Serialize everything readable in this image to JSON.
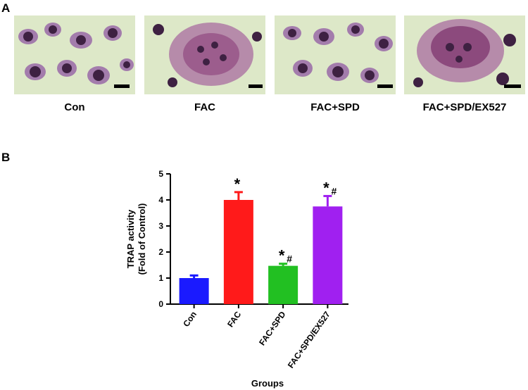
{
  "panel_a": {
    "label": "A",
    "images": [
      {
        "caption": "Con",
        "cells": "many-small"
      },
      {
        "caption": "FAC",
        "cells": "large-multinuclear"
      },
      {
        "caption": "FAC+SPD",
        "cells": "many-small"
      },
      {
        "caption": "FAC+SPD/EX527",
        "cells": "large-multinuclear"
      }
    ],
    "colors": {
      "background": "#d9e6c4",
      "cytoplasm": "#8a5a9a",
      "nucleus": "#3b1f3f",
      "scale_bar": "#000000"
    }
  },
  "panel_b": {
    "label": "B"
  },
  "chart_data": {
    "type": "bar",
    "categories": [
      "Con",
      "FAC",
      "FAC+SPD",
      "FAC+SPD/EX527"
    ],
    "values": [
      1.0,
      4.0,
      1.47,
      3.75
    ],
    "errors": [
      0.1,
      0.3,
      0.08,
      0.4
    ],
    "colors": [
      "#1a1aff",
      "#ff1a1a",
      "#22c022",
      "#a020f0"
    ],
    "significance": [
      {
        "star": "",
        "hash": ""
      },
      {
        "star": "*",
        "hash": ""
      },
      {
        "star": "*",
        "hash": "#"
      },
      {
        "star": "*",
        "hash": "#"
      }
    ],
    "xlabel": "Groups",
    "ylabel_line1": "TRAP activity",
    "ylabel_line2": "(Fold of Control)",
    "ylim": [
      0,
      5
    ],
    "yticks": [
      "0",
      "1",
      "2",
      "3",
      "4",
      "5"
    ],
    "grid": false
  }
}
